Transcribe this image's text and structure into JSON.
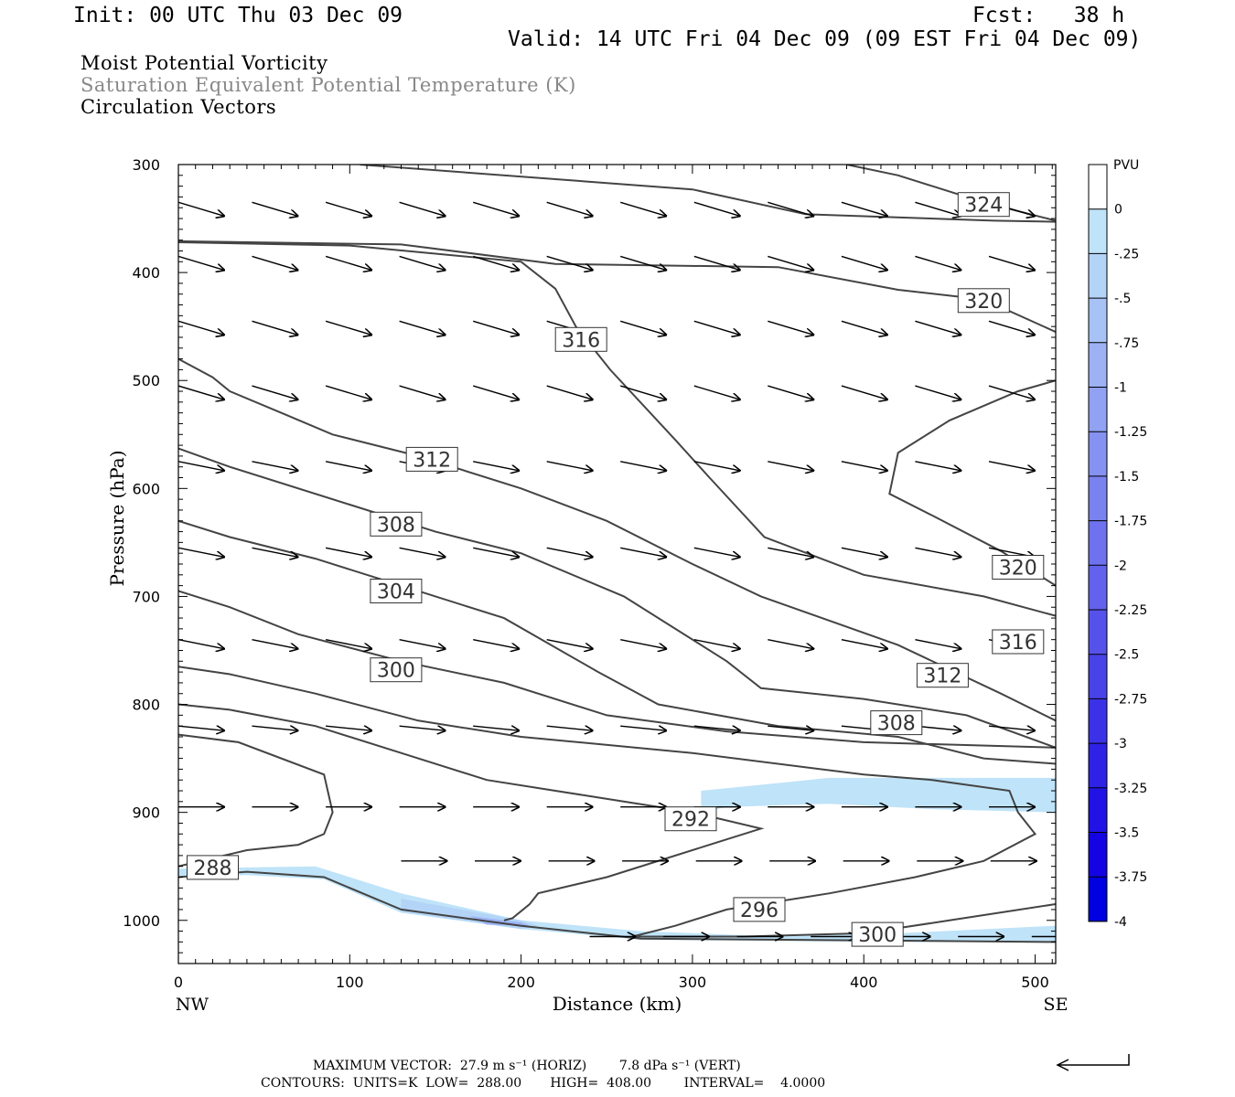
{
  "header": {
    "init": "Init: 00 UTC Thu 03 Dec 09",
    "fcst": "Fcst:   38 h",
    "valid": "Valid: 14 UTC Fri 04 Dec 09 (09 EST Fri 04 Dec 09)",
    "field1": "Moist Potential Vorticity",
    "field2": "Saturation Equivalent Potential Temperature (K)",
    "field3": "Circulation Vectors"
  },
  "colorbar": {
    "title": "PVU",
    "labels": [
      "0",
      "-.25",
      "-.5",
      "-.75",
      "-1",
      "-1.25",
      "-1.5",
      "-1.75",
      "-2",
      "-2.25",
      "-2.5",
      "-2.75",
      "-3",
      "-3.25",
      "-3.5",
      "-3.75",
      "-4"
    ],
    "colors": [
      "#ffffff",
      "#bfe3f8",
      "#b3d4f7",
      "#a7c3f5",
      "#9cb2f4",
      "#91a2f2",
      "#8592f1",
      "#7a82ef",
      "#6e72ee",
      "#6262ec",
      "#5552eb",
      "#4842e9",
      "#3b32e8",
      "#2e22e6",
      "#2112e5",
      "#1404e3",
      "#0000e0"
    ]
  },
  "footer": {
    "max_vector": "MAXIMUM VECTOR:  27.9 m s⁻¹ (HORIZ)        7.8 dPa s⁻¹ (VERT)",
    "contours": "CONTOURS:  UNITS=K  LOW=  288.00       HIGH=  408.00        INTERVAL=    4.0000"
  },
  "chart_data": {
    "type": "cross-section",
    "title": "Moist Potential Vorticity",
    "xlabel": "Distance (km)",
    "ylabel": "Pressure (hPa)",
    "xlim": [
      0,
      512
    ],
    "ylim": [
      1040,
      300
    ],
    "x_ticks": [
      "0",
      "100",
      "200",
      "300",
      "400",
      "500"
    ],
    "y_ticks": [
      "300",
      "400",
      "500",
      "600",
      "700",
      "800",
      "900",
      "1000"
    ],
    "x_end_labels": [
      "NW",
      "SE"
    ],
    "contour_units": "K",
    "contour_interval": 4,
    "contour_labels": [
      {
        "value": "324",
        "x": 470,
        "p": 337
      },
      {
        "value": "320",
        "x": 470,
        "p": 426
      },
      {
        "value": "316",
        "x": 235,
        "p": 462
      },
      {
        "value": "312",
        "x": 148,
        "p": 573
      },
      {
        "value": "308",
        "x": 127,
        "p": 633
      },
      {
        "value": "304",
        "x": 127,
        "p": 695
      },
      {
        "value": "300",
        "x": 127,
        "p": 768
      },
      {
        "value": "320",
        "x": 490,
        "p": 673
      },
      {
        "value": "316",
        "x": 490,
        "p": 742
      },
      {
        "value": "312",
        "x": 446,
        "p": 773
      },
      {
        "value": "308",
        "x": 419,
        "p": 817
      },
      {
        "value": "292",
        "x": 299,
        "p": 906
      },
      {
        "value": "288",
        "x": 20,
        "p": 951
      },
      {
        "value": "296",
        "x": 339,
        "p": 990
      },
      {
        "value": "300",
        "x": 408,
        "p": 1013
      }
    ],
    "contours": [
      {
        "theta": 324,
        "points": [
          [
            106,
            300
          ],
          [
            300,
            323
          ],
          [
            366,
            346
          ],
          [
            476,
            352
          ],
          [
            512,
            353
          ]
        ]
      },
      {
        "theta": 324,
        "points": [
          [
            390,
            300
          ],
          [
            420,
            310
          ],
          [
            440,
            320
          ],
          [
            470,
            335
          ],
          [
            512,
            352
          ]
        ]
      },
      {
        "theta": 320,
        "points": [
          [
            0,
            371
          ],
          [
            130,
            374
          ],
          [
            220,
            392
          ],
          [
            350,
            395
          ],
          [
            420,
            416
          ],
          [
            470,
            425
          ],
          [
            512,
            455
          ]
        ]
      },
      {
        "theta": 316,
        "points": [
          [
            0,
            372
          ],
          [
            100,
            375
          ],
          [
            200,
            390
          ],
          [
            220,
            415
          ],
          [
            232,
            450
          ],
          [
            252,
            490
          ],
          [
            290,
            555
          ],
          [
            310,
            590
          ],
          [
            342,
            645
          ],
          [
            400,
            680
          ],
          [
            470,
            700
          ],
          [
            512,
            718
          ]
        ]
      },
      {
        "theta": 316,
        "points": [
          [
            512,
            500
          ],
          [
            490,
            510
          ],
          [
            450,
            537
          ],
          [
            420,
            567
          ],
          [
            415,
            605
          ],
          [
            440,
            625
          ],
          [
            480,
            658
          ],
          [
            512,
            690
          ]
        ]
      },
      {
        "theta": 312,
        "points": [
          [
            0,
            480
          ],
          [
            20,
            497
          ],
          [
            30,
            510
          ],
          [
            60,
            530
          ],
          [
            90,
            550
          ],
          [
            140,
            570
          ],
          [
            200,
            600
          ],
          [
            250,
            630
          ],
          [
            300,
            670
          ],
          [
            340,
            700
          ],
          [
            420,
            745
          ],
          [
            480,
            790
          ],
          [
            512,
            815
          ]
        ]
      },
      {
        "theta": 308,
        "points": [
          [
            0,
            563
          ],
          [
            30,
            580
          ],
          [
            100,
            615
          ],
          [
            150,
            640
          ],
          [
            200,
            660
          ],
          [
            260,
            700
          ],
          [
            320,
            760
          ],
          [
            340,
            785
          ],
          [
            400,
            795
          ],
          [
            460,
            810
          ],
          [
            512,
            840
          ]
        ]
      },
      {
        "theta": 304,
        "points": [
          [
            0,
            630
          ],
          [
            30,
            645
          ],
          [
            80,
            665
          ],
          [
            130,
            690
          ],
          [
            190,
            720
          ],
          [
            245,
            770
          ],
          [
            280,
            800
          ],
          [
            350,
            820
          ],
          [
            420,
            830
          ],
          [
            470,
            850
          ],
          [
            512,
            855
          ]
        ]
      },
      {
        "theta": 300,
        "points": [
          [
            0,
            695
          ],
          [
            30,
            710
          ],
          [
            70,
            735
          ],
          [
            130,
            760
          ],
          [
            190,
            780
          ],
          [
            250,
            810
          ],
          [
            320,
            825
          ],
          [
            400,
            835
          ],
          [
            512,
            840
          ]
        ]
      },
      {
        "theta": 296,
        "points": [
          [
            0,
            765
          ],
          [
            30,
            772
          ],
          [
            80,
            790
          ],
          [
            140,
            815
          ],
          [
            200,
            830
          ],
          [
            300,
            845
          ],
          [
            400,
            865
          ],
          [
            440,
            870
          ],
          [
            485,
            880
          ],
          [
            490,
            900
          ],
          [
            500,
            920
          ],
          [
            470,
            945
          ],
          [
            430,
            960
          ],
          [
            380,
            975
          ],
          [
            320,
            990
          ],
          [
            290,
            1005
          ],
          [
            265,
            1015
          ]
        ]
      },
      {
        "theta": 292,
        "points": [
          [
            0,
            800
          ],
          [
            30,
            805
          ],
          [
            80,
            820
          ],
          [
            130,
            845
          ],
          [
            180,
            870
          ],
          [
            240,
            885
          ],
          [
            300,
            900
          ],
          [
            340,
            915
          ],
          [
            310,
            930
          ],
          [
            250,
            960
          ],
          [
            210,
            975
          ],
          [
            205,
            985
          ],
          [
            195,
            998
          ],
          [
            190,
            1000
          ]
        ]
      },
      {
        "theta": 288,
        "points": [
          [
            0,
            828
          ],
          [
            35,
            835
          ],
          [
            85,
            865
          ],
          [
            90,
            900
          ],
          [
            85,
            920
          ],
          [
            70,
            930
          ],
          [
            40,
            935
          ],
          [
            0,
            950
          ]
        ]
      },
      {
        "theta": 300,
        "points": [
          [
            265,
            1015
          ],
          [
            330,
            1015
          ],
          [
            400,
            1012
          ],
          [
            450,
            1000
          ],
          [
            512,
            985
          ]
        ]
      },
      {
        "theta": 288,
        "points": [
          [
            0,
            960
          ],
          [
            40,
            955
          ],
          [
            85,
            960
          ],
          [
            130,
            990
          ],
          [
            200,
            1005
          ],
          [
            270,
            1017
          ],
          [
            512,
            1020
          ]
        ]
      }
    ],
    "mpv_shading": [
      {
        "pvu_level": "-.25",
        "region": [
          [
            305,
            880
          ],
          [
            380,
            868
          ],
          [
            512,
            868
          ],
          [
            512,
            900
          ],
          [
            440,
            897
          ],
          [
            380,
            892
          ],
          [
            320,
            895
          ],
          [
            305,
            900
          ]
        ]
      },
      {
        "pvu_level": "-.25",
        "region": [
          [
            0,
            952
          ],
          [
            80,
            950
          ],
          [
            130,
            975
          ],
          [
            200,
            1000
          ],
          [
            270,
            1010
          ],
          [
            350,
            1015
          ],
          [
            420,
            1012
          ],
          [
            512,
            1005
          ],
          [
            512,
            1020
          ],
          [
            420,
            1020
          ],
          [
            270,
            1018
          ],
          [
            200,
            1008
          ],
          [
            130,
            993
          ],
          [
            85,
            962
          ],
          [
            40,
            958
          ],
          [
            0,
            960
          ]
        ]
      },
      {
        "pvu_level": "-.5",
        "region": [
          [
            130,
            980
          ],
          [
            200,
            1000
          ],
          [
            210,
            1005
          ],
          [
            200,
            1008
          ],
          [
            130,
            992
          ]
        ]
      },
      {
        "pvu_level": "-1",
        "region": [
          [
            170,
            996
          ],
          [
            200,
            1002
          ],
          [
            205,
            1005
          ],
          [
            180,
            1004
          ]
        ]
      }
    ],
    "vector_rows": [
      {
        "p": 335,
        "x_start": 0,
        "dx": 43,
        "dir": [
          1,
          -0.03
        ]
      },
      {
        "p": 385,
        "x_start": 0,
        "dx": 43,
        "dir": [
          1,
          -0.03
        ]
      },
      {
        "p": 445,
        "x_start": 0,
        "dx": 43,
        "dir": [
          1,
          -0.03
        ]
      },
      {
        "p": 505,
        "x_start": 0,
        "dx": 43,
        "dir": [
          1,
          -0.03
        ]
      },
      {
        "p": 575,
        "x_start": 0,
        "dx": 43,
        "dir": [
          1,
          -0.02
        ]
      },
      {
        "p": 655,
        "x_start": 0,
        "dx": 43,
        "dir": [
          1,
          -0.02
        ]
      },
      {
        "p": 740,
        "x_start": 0,
        "dx": 43,
        "dir": [
          1,
          -0.02
        ]
      },
      {
        "p": 820,
        "x_start": 0,
        "dx": 43,
        "dir": [
          1,
          -0.01
        ]
      },
      {
        "p": 895,
        "x_start": 0,
        "dx": 43,
        "dir": [
          1,
          0.0
        ]
      },
      {
        "p": 945,
        "x_start": 130,
        "dx": 43,
        "dir": [
          1,
          0.0
        ]
      },
      {
        "p": 1015,
        "x_start": 240,
        "dx": 43,
        "dir": [
          1,
          0.0
        ]
      }
    ],
    "grid": false,
    "legend": "right"
  }
}
